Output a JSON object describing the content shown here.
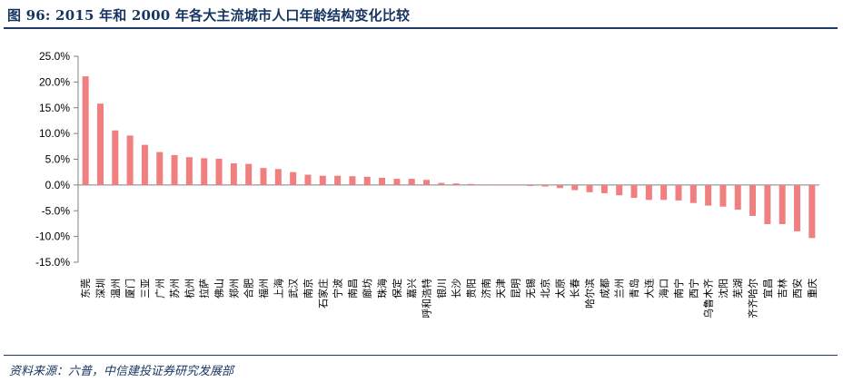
{
  "title": "图 96: 2015 年和 2000 年各大主流城市人口年龄结构变化比较",
  "source": "资料来源：六普，中信建投证券研究发展部",
  "colors": {
    "bar": "#f08080",
    "axis": "#808080",
    "text": "#000000",
    "accent": "#1f3a6b"
  },
  "chart_data": {
    "type": "bar",
    "title": "",
    "xlabel": "",
    "ylabel": "",
    "ylim": [
      -15,
      25
    ],
    "yticks": [
      25,
      20,
      15,
      10,
      5,
      0,
      -5,
      -10,
      -15
    ],
    "ytick_labels": [
      "25.0%",
      "20.0%",
      "15.0%",
      "10.0%",
      "5.0%",
      "0.0%",
      "-5.0%",
      "-10.0%",
      "-15.0%"
    ],
    "grid": false,
    "categories": [
      "东莞",
      "深圳",
      "温州",
      "厦门",
      "三亚",
      "广州",
      "苏州",
      "杭州",
      "拉萨",
      "佛山",
      "郑州",
      "合肥",
      "福州",
      "上海",
      "武汉",
      "南京",
      "石家庄",
      "宁波",
      "南昌",
      "廊坊",
      "珠海",
      "保定",
      "嘉兴",
      "呼和浩特",
      "银川",
      "长沙",
      "贵阳",
      "济南",
      "天津",
      "昆明",
      "无锡",
      "北京",
      "太原",
      "长春",
      "哈尔滨",
      "成都",
      "兰州",
      "青岛",
      "大连",
      "海口",
      "南宁",
      "西宁",
      "乌鲁木齐",
      "沈阳",
      "芜湖",
      "齐齐哈尔",
      "宜昌",
      "吉林",
      "西安",
      "重庆"
    ],
    "values": [
      21.1,
      15.8,
      10.6,
      9.6,
      7.8,
      6.4,
      5.8,
      5.4,
      5.2,
      5.1,
      4.2,
      4.1,
      3.3,
      3.1,
      2.5,
      2.0,
      1.8,
      1.8,
      1.7,
      1.6,
      1.4,
      1.2,
      1.2,
      1.0,
      0.4,
      0.3,
      0.2,
      0.1,
      -0.1,
      -0.1,
      -0.2,
      -0.3,
      -0.6,
      -1.0,
      -1.4,
      -1.6,
      -2.0,
      -2.5,
      -2.9,
      -2.9,
      -3.0,
      -3.5,
      -4.0,
      -4.2,
      -4.8,
      -6.0,
      -7.6,
      -7.6,
      -9.0,
      -10.3
    ]
  }
}
